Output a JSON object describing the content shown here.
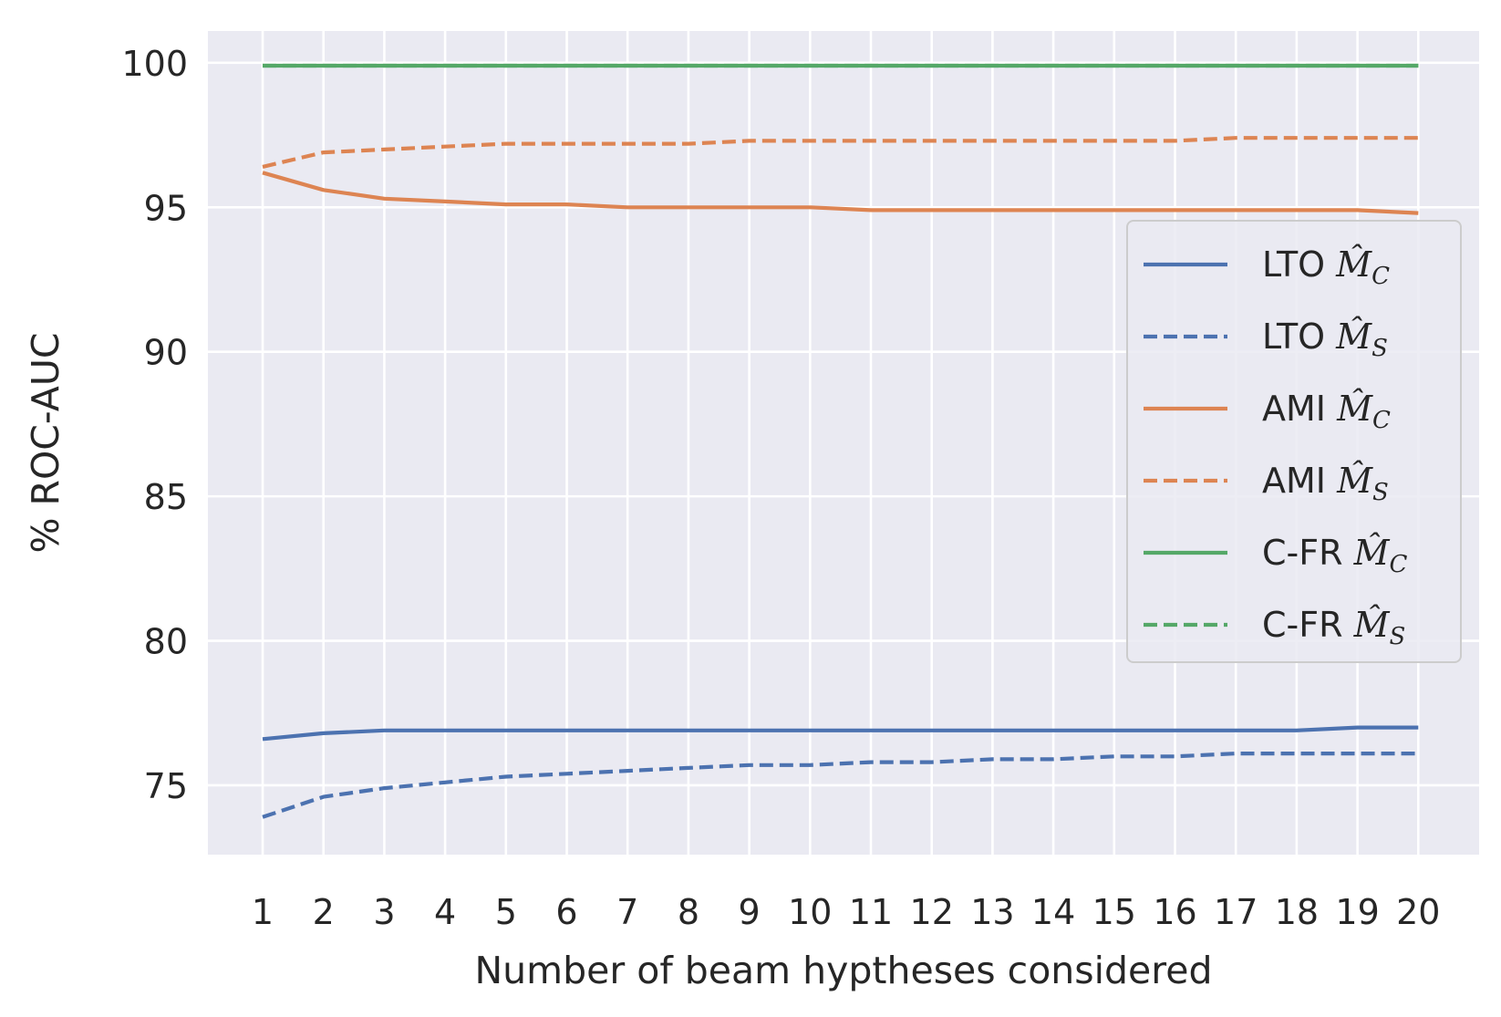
{
  "chart_data": {
    "type": "line",
    "title": "",
    "xlabel": "Number of beam hyptheses considered",
    "ylabel": "% ROC-AUC",
    "x": [
      1,
      2,
      3,
      4,
      5,
      6,
      7,
      8,
      9,
      10,
      11,
      12,
      13,
      14,
      15,
      16,
      17,
      18,
      19,
      20
    ],
    "xticks": [
      "1",
      "2",
      "3",
      "4",
      "5",
      "6",
      "7",
      "8",
      "9",
      "10",
      "11",
      "12",
      "13",
      "14",
      "15",
      "16",
      "17",
      "18",
      "19",
      "20"
    ],
    "yticks": [
      "75",
      "80",
      "85",
      "90",
      "95",
      "100"
    ],
    "ytick_values": [
      75,
      80,
      85,
      90,
      95,
      100
    ],
    "xlim": [
      0.1,
      21.0
    ],
    "ylim": [
      72.6,
      101.1
    ],
    "grid": true,
    "legend_position": "center-right",
    "series": [
      {
        "name": "LTO",
        "sub": "C",
        "color": "#4c72b0",
        "dash": "solid",
        "values": [
          76.6,
          76.8,
          76.9,
          76.9,
          76.9,
          76.9,
          76.9,
          76.9,
          76.9,
          76.9,
          76.9,
          76.9,
          76.9,
          76.9,
          76.9,
          76.9,
          76.9,
          76.9,
          77.0,
          77.0
        ]
      },
      {
        "name": "LTO",
        "sub": "S",
        "color": "#4c72b0",
        "dash": "dashed",
        "values": [
          73.9,
          74.6,
          74.9,
          75.1,
          75.3,
          75.4,
          75.5,
          75.6,
          75.7,
          75.7,
          75.8,
          75.8,
          75.9,
          75.9,
          76.0,
          76.0,
          76.1,
          76.1,
          76.1,
          76.1
        ]
      },
      {
        "name": "AMI",
        "sub": "C",
        "color": "#dd8452",
        "dash": "solid",
        "values": [
          96.2,
          95.6,
          95.3,
          95.2,
          95.1,
          95.1,
          95.0,
          95.0,
          95.0,
          95.0,
          94.9,
          94.9,
          94.9,
          94.9,
          94.9,
          94.9,
          94.9,
          94.9,
          94.9,
          94.8
        ]
      },
      {
        "name": "AMI",
        "sub": "S",
        "color": "#dd8452",
        "dash": "dashed",
        "values": [
          96.4,
          96.9,
          97.0,
          97.1,
          97.2,
          97.2,
          97.2,
          97.2,
          97.3,
          97.3,
          97.3,
          97.3,
          97.3,
          97.3,
          97.3,
          97.3,
          97.4,
          97.4,
          97.4,
          97.4
        ]
      },
      {
        "name": "C-FR",
        "sub": "C",
        "color": "#55a868",
        "dash": "solid",
        "values": [
          99.9,
          99.9,
          99.9,
          99.9,
          99.9,
          99.9,
          99.9,
          99.9,
          99.9,
          99.9,
          99.9,
          99.9,
          99.9,
          99.9,
          99.9,
          99.9,
          99.9,
          99.9,
          99.9,
          99.9
        ]
      },
      {
        "name": "C-FR",
        "sub": "S",
        "color": "#55a868",
        "dash": "dashed",
        "values": [
          99.9,
          99.9,
          99.9,
          99.9,
          99.9,
          99.9,
          99.9,
          99.9,
          99.9,
          99.9,
          99.9,
          99.9,
          99.9,
          99.9,
          99.9,
          99.9,
          99.9,
          99.9,
          99.9,
          99.9
        ]
      }
    ],
    "colors": {
      "background": "#eaeaf2",
      "grid": "#ffffff",
      "text": "#262626"
    }
  }
}
